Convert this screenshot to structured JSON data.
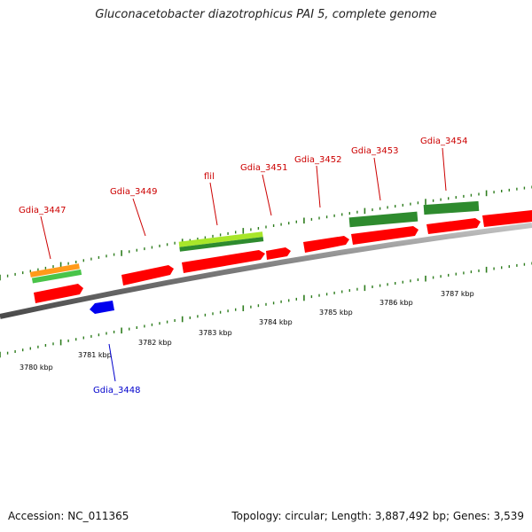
{
  "title": "Gluconacetobacter diazotrophicus PAI 5, complete genome",
  "footer": {
    "accession": "Accession: NC_011365",
    "summary": "Topology: circular; Length: 3,887,492 bp; Genes: 3,539"
  },
  "colors": {
    "forward_gene": "#ff0000",
    "reverse_gene": "#0000ee",
    "label_forward": "#cc0000",
    "label_reverse": "#0000cc",
    "green_dark": "#2e8b2e",
    "green_light": "#a8e62a",
    "green_mid": "#49c449",
    "orange": "#ff9a1a",
    "backbone": "#808080",
    "tick": "#2e7d1e"
  },
  "scale_labels": [
    "3780 kbp",
    "3781 kbp",
    "3782 kbp",
    "3783 kbp",
    "3784 kbp",
    "3785 kbp",
    "3786 kbp",
    "3787 kbp"
  ],
  "gene_labels": [
    {
      "text": "Gdia_3447",
      "strand": "forward"
    },
    {
      "text": "Gdia_3448",
      "strand": "reverse"
    },
    {
      "text": "Gdia_3449",
      "strand": "forward"
    },
    {
      "text": "flil",
      "strand": "forward"
    },
    {
      "text": "Gdia_3451",
      "strand": "forward"
    },
    {
      "text": "Gdia_3452",
      "strand": "forward"
    },
    {
      "text": "Gdia_3453",
      "strand": "forward"
    },
    {
      "text": "Gdia_3454",
      "strand": "forward"
    }
  ]
}
